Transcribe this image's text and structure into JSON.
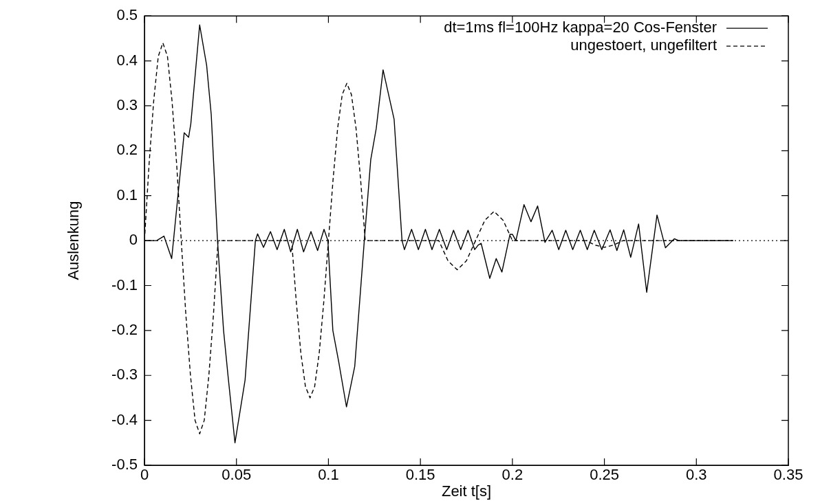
{
  "chart_data": {
    "type": "line",
    "xlabel": "Zeit t[s]",
    "ylabel": "Auslenkung",
    "xlim": [
      0,
      0.35
    ],
    "xticks": [
      0,
      0.05,
      0.1,
      0.15,
      0.2,
      0.25,
      0.3,
      0.35
    ],
    "ylim": [
      -0.5,
      0.5
    ],
    "yticks": [
      -0.5,
      -0.4,
      -0.3,
      -0.2,
      -0.1,
      0,
      0.1,
      0.2,
      0.3,
      0.4,
      0.5
    ],
    "grid": false,
    "legend": "top right",
    "marker": "none",
    "ref_lines": [
      {
        "axis": "y",
        "value": 0,
        "color": "#000000",
        "line_style": "dotted"
      }
    ],
    "series": [
      {
        "name": "dt=1ms fl=100Hz kappa=20 Cos-Fenster",
        "color": "#000000",
        "line_style": "solid",
        "x": [
          0,
          0.0066,
          0.0106,
          0.0148,
          0.0216,
          0.024,
          0.0252,
          0.03,
          0.0338,
          0.0363,
          0.0397,
          0.043,
          0.0454,
          0.0492,
          0.0547,
          0.0603,
          0.0615,
          0.0647,
          0.0685,
          0.0721,
          0.076,
          0.0795,
          0.0831,
          0.0865,
          0.0905,
          0.0941,
          0.0976,
          0.0997,
          0.1024,
          0.1056,
          0.1098,
          0.1143,
          0.1195,
          0.123,
          0.126,
          0.1297,
          0.1357,
          0.1373,
          0.14,
          0.1413,
          0.1452,
          0.1489,
          0.1527,
          0.1563,
          0.1603,
          0.1643,
          0.168,
          0.1719,
          0.1759,
          0.1795,
          0.1814,
          0.183,
          0.1877,
          0.1912,
          0.1943,
          0.1987,
          0.2,
          0.2019,
          0.2063,
          0.2101,
          0.2137,
          0.2177,
          0.2216,
          0.2252,
          0.229,
          0.2328,
          0.2369,
          0.2407,
          0.2445,
          0.2486,
          0.2531,
          0.2568,
          0.2605,
          0.2643,
          0.2686,
          0.273,
          0.2786,
          0.2832,
          0.288,
          0.2905,
          0.32
        ],
        "values": [
          0,
          0,
          0.01,
          -0.04,
          0.24,
          0.23,
          0.26,
          0.48,
          0.39,
          0.28,
          0,
          -0.2,
          -0.3,
          -0.45,
          -0.31,
          0,
          0.015,
          -0.015,
          0.02,
          -0.02,
          0.025,
          -0.025,
          0.025,
          -0.025,
          0.02,
          -0.022,
          0.025,
          0,
          -0.2,
          -0.27,
          -0.37,
          -0.28,
          0,
          0.18,
          0.25,
          0.38,
          0.27,
          0.17,
          0,
          -0.02,
          0.025,
          -0.02,
          0.025,
          -0.02,
          0.025,
          -0.02,
          0.023,
          -0.02,
          0.023,
          -0.02,
          -0.01,
          -0.006,
          -0.084,
          -0.04,
          -0.07,
          0.014,
          0.014,
          0,
          0.08,
          0.042,
          0.077,
          -0.004,
          0.023,
          -0.02,
          0.023,
          -0.02,
          0.023,
          -0.02,
          0.023,
          -0.02,
          0.024,
          -0.022,
          0.024,
          -0.037,
          0.037,
          -0.115,
          0.057,
          -0.016,
          0.004,
          0,
          0
        ]
      },
      {
        "name": "ungestoert, ungefiltert",
        "color": "#000000",
        "line_style": "dashed",
        "x": [
          0,
          0.0025,
          0.005,
          0.0075,
          0.01,
          0.0125,
          0.015,
          0.0175,
          0.02,
          0.0225,
          0.025,
          0.0275,
          0.03,
          0.0325,
          0.035,
          0.0375,
          0.04,
          0.08,
          0.0825,
          0.085,
          0.0875,
          0.09,
          0.0925,
          0.095,
          0.0975,
          0.1,
          0.1025,
          0.105,
          0.1075,
          0.11,
          0.1125,
          0.115,
          0.1175,
          0.12,
          0.16,
          0.165,
          0.17,
          0.175,
          0.18,
          0.185,
          0.19,
          0.195,
          0.2,
          0.24,
          0.245,
          0.25,
          0.255,
          0.26,
          0.32
        ],
        "values": [
          0,
          0.17,
          0.31,
          0.41,
          0.44,
          0.41,
          0.31,
          0.17,
          0,
          -0.165,
          -0.3,
          -0.4,
          -0.43,
          -0.4,
          -0.3,
          -0.165,
          0,
          0,
          -0.135,
          -0.25,
          -0.325,
          -0.35,
          -0.325,
          -0.25,
          -0.135,
          0,
          0.135,
          0.25,
          0.325,
          0.35,
          0.325,
          0.25,
          0.135,
          0,
          0,
          -0.045,
          -0.065,
          -0.045,
          0,
          0.045,
          0.065,
          0.045,
          0,
          0,
          -0.01,
          -0.015,
          -0.01,
          0,
          0
        ]
      }
    ]
  }
}
